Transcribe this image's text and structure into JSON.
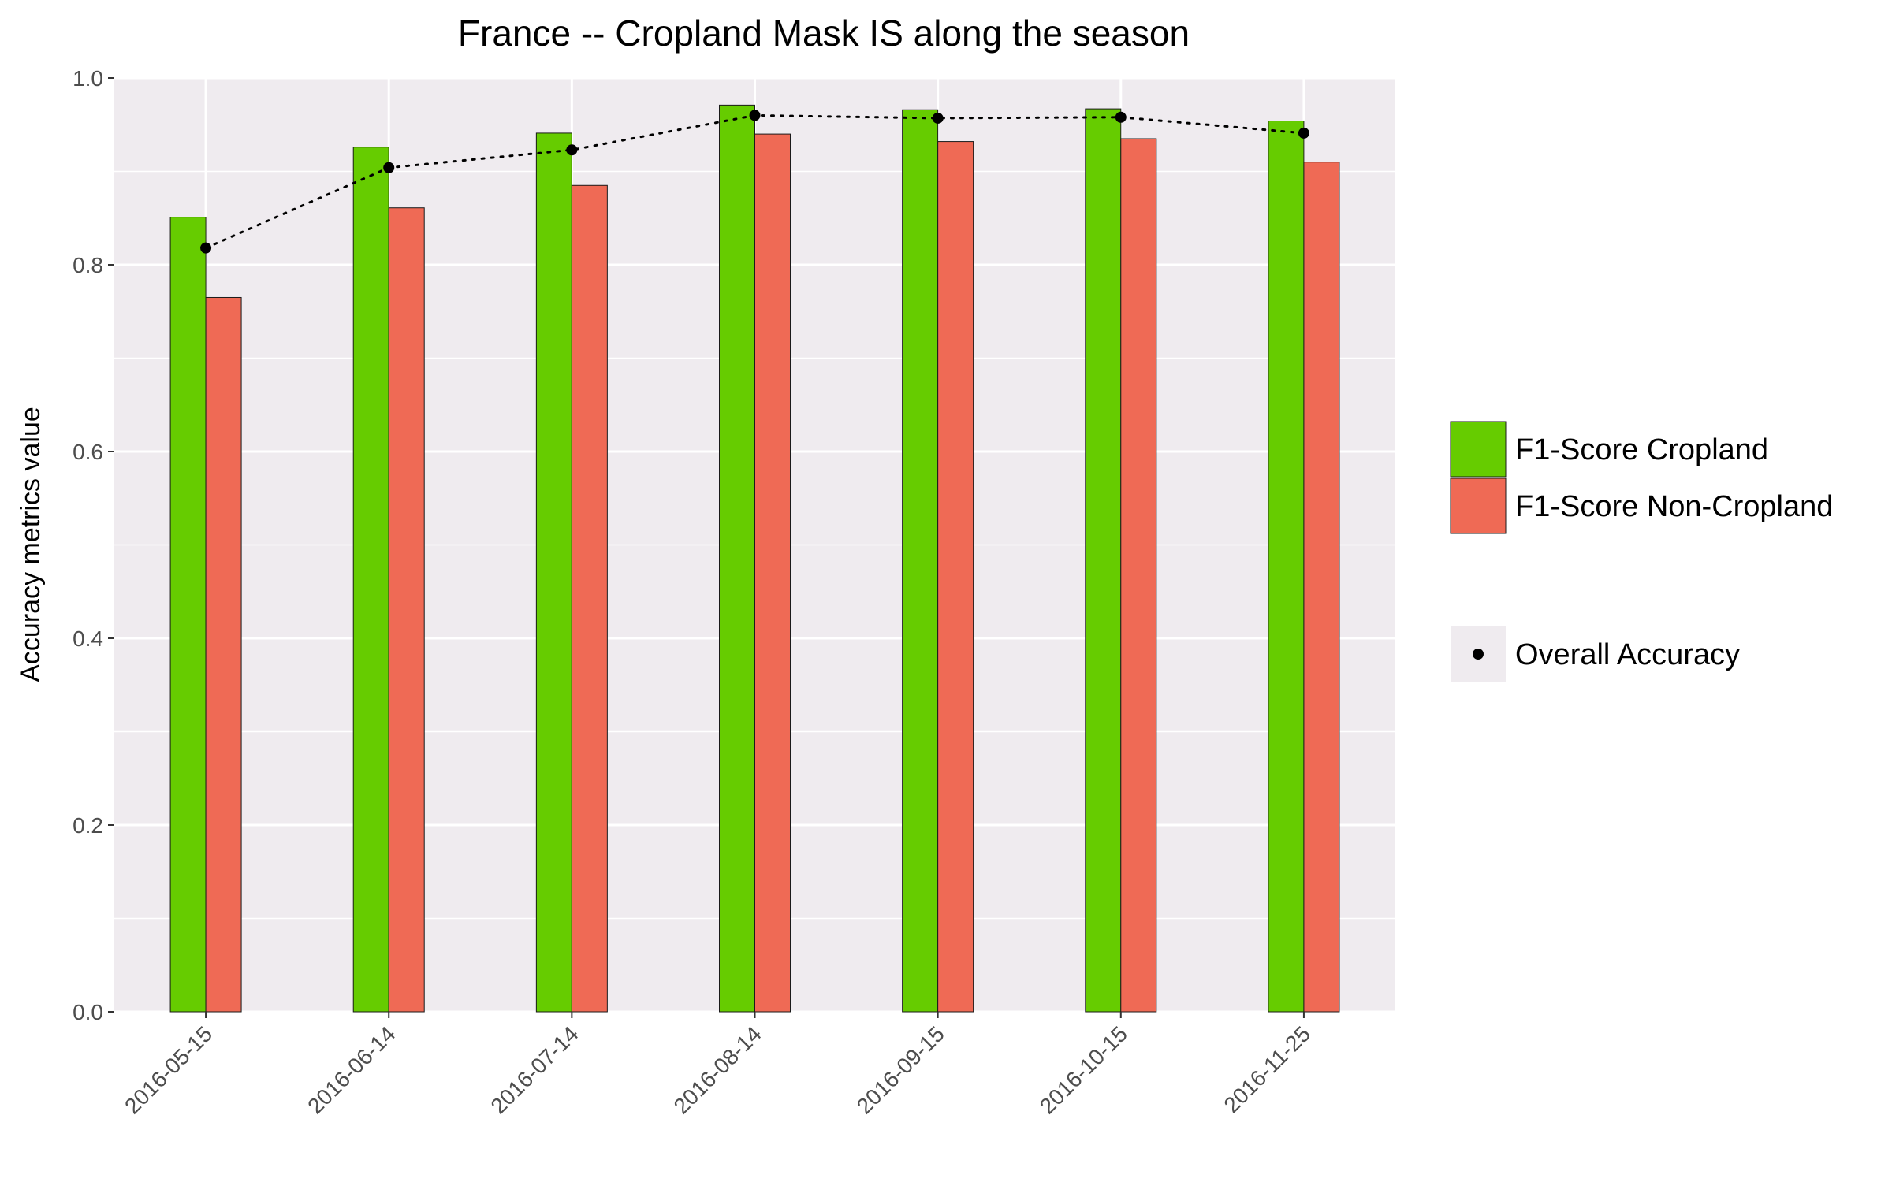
{
  "chart_data": {
    "type": "bar",
    "title": "France -- Cropland Mask IS along the season",
    "xlabel": "",
    "ylabel": "Accuracy metrics value",
    "ylim": [
      0,
      1
    ],
    "yticks": [
      "0.0",
      "0.2",
      "0.4",
      "0.6",
      "0.8",
      "1.0"
    ],
    "categories": [
      "2016-05-15",
      "2016-06-14",
      "2016-07-14",
      "2016-08-14",
      "2016-09-15",
      "2016-10-15",
      "2016-11-25"
    ],
    "series": [
      {
        "name": "F1-Score Cropland",
        "kind": "bar",
        "color": "#66cc00",
        "values": [
          0.851,
          0.926,
          0.941,
          0.971,
          0.966,
          0.967,
          0.954
        ]
      },
      {
        "name": "F1-Score Non-Cropland",
        "kind": "bar",
        "color": "#ef6a55",
        "values": [
          0.765,
          0.861,
          0.885,
          0.94,
          0.932,
          0.935,
          0.91
        ]
      },
      {
        "name": "Overall Accuracy",
        "kind": "line-points",
        "color": "#000000",
        "line_style": "dotted",
        "values": [
          0.818,
          0.904,
          0.923,
          0.96,
          0.957,
          0.958,
          0.941
        ]
      }
    ],
    "grid": true,
    "panel_background": "#efebef",
    "legend_placement": "right"
  }
}
